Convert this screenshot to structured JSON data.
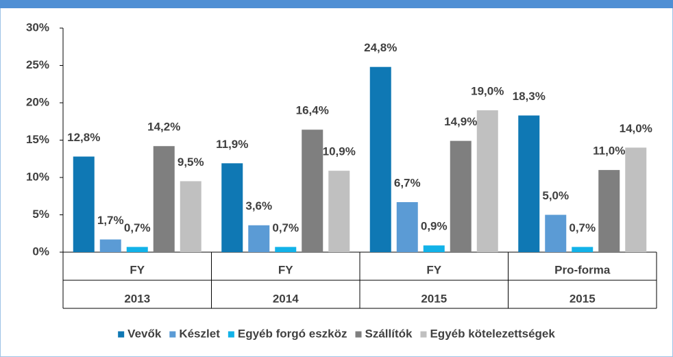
{
  "chart_data": {
    "type": "bar",
    "categories": [
      [
        "FY",
        "2013"
      ],
      [
        "FY",
        "2014"
      ],
      [
        "FY",
        "2015"
      ],
      [
        "Pro-forma",
        "2015"
      ]
    ],
    "series": [
      {
        "name": "Vevők",
        "color": "#0f78b4",
        "values": [
          12.8,
          11.9,
          24.8,
          18.3
        ],
        "value_labels": [
          "12,8%",
          "11,9%",
          "24,8%",
          "18,3%"
        ]
      },
      {
        "name": "Készlet",
        "color": "#5b9bd5",
        "values": [
          1.7,
          3.6,
          6.7,
          5.0
        ],
        "value_labels": [
          "1,7%",
          "3,6%",
          "6,7%",
          "5,0%"
        ]
      },
      {
        "name": "Egyéb forgó eszköz",
        "color": "#12b2e8",
        "values": [
          0.7,
          0.7,
          0.9,
          0.7
        ],
        "value_labels": [
          "0,7%",
          "0,7%",
          "0,9%",
          "0,7%"
        ]
      },
      {
        "name": "Szállítók",
        "color": "#7f7f7f",
        "values": [
          14.2,
          16.4,
          14.9,
          11.0
        ],
        "value_labels": [
          "14,2%",
          "16,4%",
          "14,9%",
          "11,0%"
        ]
      },
      {
        "name": "Egyéb kötelezettségek",
        "color": "#c0c0c0",
        "values": [
          9.5,
          10.9,
          19.0,
          14.0
        ],
        "value_labels": [
          "9,5%",
          "10,9%",
          "19,0%",
          "14,0%"
        ]
      }
    ],
    "ylim": [
      0,
      30
    ],
    "yticks": [
      {
        "value": 0,
        "label": "0%"
      },
      {
        "value": 5,
        "label": "5%"
      },
      {
        "value": 10,
        "label": "10%"
      },
      {
        "value": 15,
        "label": "15%"
      },
      {
        "value": 20,
        "label": "20%"
      },
      {
        "value": 25,
        "label": "25%"
      },
      {
        "value": 30,
        "label": "30%"
      }
    ],
    "legend": "bottom"
  }
}
